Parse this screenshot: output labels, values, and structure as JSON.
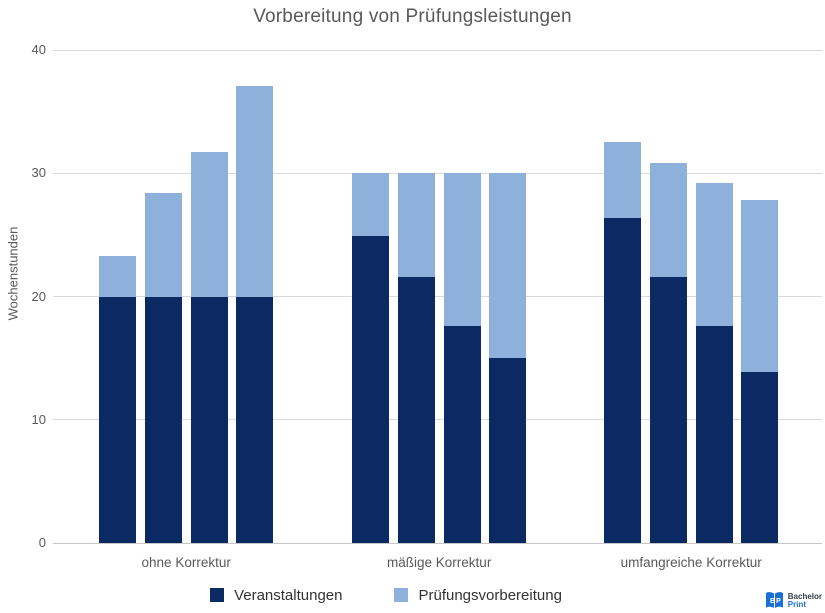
{
  "title": "Vorbereitung von Prüfungsleistungen",
  "chart_data": {
    "type": "bar",
    "stacked": true,
    "title": "Vorbereitung von Prüfungsleistungen",
    "ylabel": "Wochenstunden",
    "xlabel": "",
    "ylim": [
      0,
      40
    ],
    "yticks": [
      0,
      10,
      20,
      30,
      40
    ],
    "grid": "horizontal",
    "legend_position": "bottom",
    "categories": [
      "ohne Korrektur",
      "mäßige Korrektur",
      "umfangreiche Korrektur"
    ],
    "bars_per_category": 4,
    "series": [
      {
        "name": "Veranstaltungen",
        "color": "#0b2a63",
        "values": [
          [
            20.0,
            20.0,
            20.0,
            20.0
          ],
          [
            24.9,
            21.6,
            17.6,
            15.0
          ],
          [
            26.4,
            21.6,
            17.6,
            13.9
          ]
        ]
      },
      {
        "name": "Prüfungsvorbereitung",
        "color": "#8eb1db",
        "values": [
          [
            3.3,
            8.4,
            11.7,
            17.1
          ],
          [
            5.1,
            8.4,
            12.4,
            15.0
          ],
          [
            6.1,
            9.2,
            11.6,
            13.9
          ]
        ]
      }
    ],
    "stack_totals": [
      [
        23.3,
        28.4,
        31.7,
        37.1
      ],
      [
        30.0,
        30.0,
        30.0,
        30.0
      ],
      [
        32.5,
        30.8,
        29.2,
        27.8
      ]
    ]
  },
  "colors": {
    "dark_series": "#0b2a63",
    "light_series": "#8eb1db",
    "gridline": "#d9d9d9",
    "text": "#595959"
  },
  "logo": {
    "alt": "BachelorPrint",
    "monogram": "BP",
    "line1": "Bachelor",
    "line2": "Print"
  }
}
